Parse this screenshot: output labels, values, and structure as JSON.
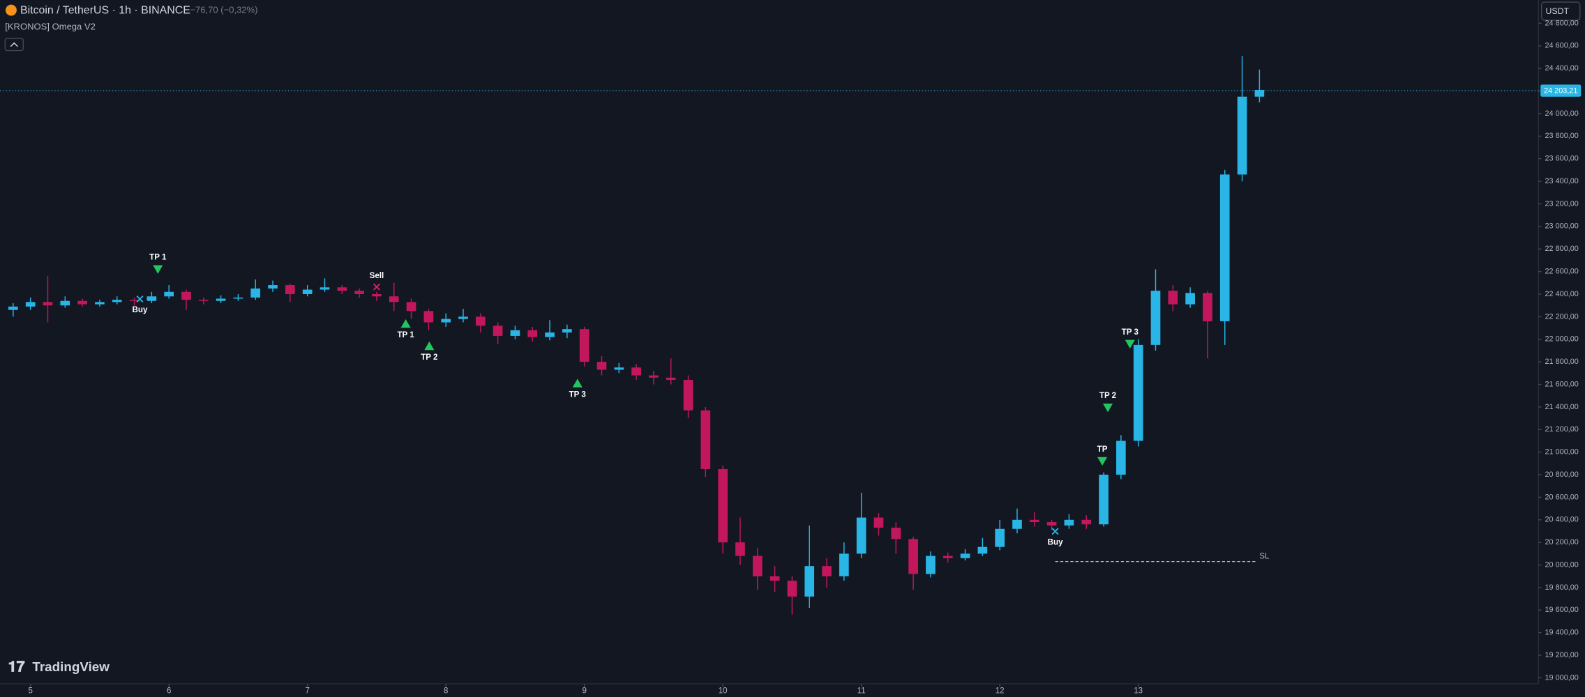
{
  "header": {
    "symbol": "Bitcoin / TetherUS · 1h · BINANCE",
    "change": "−76,70 (−0,32%)",
    "indicator": "[KRONOS] Omega V2",
    "currency": "USDT",
    "brand": "TradingView"
  },
  "chart_data": {
    "type": "candlestick",
    "x": [
      4.875,
      5,
      5.125,
      5.25,
      5.375,
      5.5,
      5.625,
      5.75,
      5.875,
      6,
      6.125,
      6.25,
      6.375,
      6.5,
      6.625,
      6.75,
      6.875,
      7,
      7.125,
      7.25,
      7.375,
      7.5,
      7.625,
      7.75,
      7.875,
      8,
      8.125,
      8.25,
      8.375,
      8.5,
      8.625,
      8.75,
      8.875,
      9,
      9.125,
      9.25,
      9.375,
      9.5,
      9.625,
      9.75,
      9.875,
      10,
      10.125,
      10.25,
      10.375,
      10.5,
      10.625,
      10.75,
      10.875,
      11,
      11.125,
      11.25,
      11.375,
      11.5,
      11.625,
      11.75,
      11.875,
      12,
      12.125,
      12.25,
      12.375,
      12.5,
      12.625,
      12.75,
      12.875,
      13,
      13.125,
      13.25,
      13.375,
      13.5,
      13.625,
      13.75,
      13.875
    ],
    "open": [
      22260,
      22290,
      22330,
      22300,
      22340,
      22310,
      22330,
      22350,
      22340,
      22380,
      22420,
      22350,
      22340,
      22360,
      22370,
      22450,
      22480,
      22400,
      22440,
      22460,
      22430,
      22400,
      22380,
      22330,
      22250,
      22150,
      22180,
      22200,
      22120,
      22030,
      22080,
      22020,
      22060,
      22090,
      21800,
      21730,
      21750,
      21680,
      21660,
      21640,
      21370,
      20850,
      20200,
      20080,
      19900,
      19860,
      19720,
      19990,
      19900,
      20100,
      20420,
      20330,
      20230,
      19920,
      20080,
      20060,
      20100,
      20160,
      20320,
      20400,
      20380,
      20350,
      20400,
      20360,
      20800,
      21100,
      21950,
      22430,
      22310,
      22410,
      22160,
      23460,
      24150
    ],
    "high": [
      22320,
      22370,
      22560,
      22380,
      22360,
      22350,
      22380,
      22370,
      22420,
      22480,
      22440,
      22370,
      22390,
      22400,
      22530,
      22520,
      22490,
      22480,
      22540,
      22480,
      22450,
      22420,
      22500,
      22360,
      22270,
      22230,
      22270,
      22230,
      22150,
      22120,
      22110,
      22170,
      22130,
      22110,
      21850,
      21790,
      21780,
      21720,
      21830,
      21680,
      21400,
      20880,
      20420,
      20150,
      19990,
      19900,
      20350,
      20060,
      20200,
      20640,
      20460,
      20380,
      20250,
      20120,
      20110,
      20140,
      20240,
      20400,
      20500,
      20470,
      20400,
      20450,
      20440,
      20820,
      21150,
      22000,
      22620,
      22480,
      22460,
      22430,
      23500,
      24510,
      24390
    ],
    "low": [
      22200,
      22260,
      22150,
      22280,
      22290,
      22290,
      22310,
      22300,
      22320,
      22360,
      22260,
      22310,
      22320,
      22340,
      22350,
      22420,
      22330,
      22380,
      22420,
      22400,
      22370,
      22340,
      22250,
      22180,
      22080,
      22110,
      22150,
      22060,
      21960,
      22000,
      21980,
      21990,
      22010,
      21760,
      21680,
      21700,
      21640,
      21600,
      21600,
      21300,
      20780,
      20100,
      20000,
      19780,
      19760,
      19560,
      19620,
      19800,
      19860,
      20060,
      20260,
      20100,
      19780,
      19890,
      20020,
      20040,
      20080,
      20130,
      20280,
      20340,
      20310,
      20320,
      20320,
      20340,
      20760,
      21050,
      21900,
      22250,
      22280,
      21830,
      21950,
      23400,
      24100
    ],
    "close": [
      22290,
      22330,
      22300,
      22340,
      22310,
      22330,
      22350,
      22340,
      22380,
      22420,
      22350,
      22340,
      22360,
      22370,
      22450,
      22480,
      22400,
      22440,
      22460,
      22430,
      22400,
      22380,
      22330,
      22250,
      22150,
      22180,
      22200,
      22120,
      22030,
      22080,
      22020,
      22060,
      22090,
      21800,
      21730,
      21750,
      21680,
      21660,
      21640,
      21370,
      20850,
      20200,
      20080,
      19900,
      19860,
      19720,
      19990,
      19900,
      20100,
      20420,
      20330,
      20230,
      19920,
      20080,
      20060,
      20100,
      20160,
      20320,
      20400,
      20380,
      20350,
      20400,
      20360,
      20800,
      21100,
      21950,
      22430,
      22310,
      22410,
      22160,
      23460,
      24150,
      24210
    ],
    "up_color": "#29b6e6",
    "down_color": "#c2185b",
    "xlim": [
      4.78,
      15.89
    ],
    "ylim": [
      18920,
      25006
    ],
    "xticks": [
      5,
      6,
      7,
      8,
      9,
      10,
      11,
      12,
      13
    ],
    "yticks": [
      {
        "value": 19000,
        "label": "19 000,00"
      },
      {
        "value": 19200,
        "label": "19 200,00"
      },
      {
        "value": 19400,
        "label": "19 400,00"
      },
      {
        "value": 19600,
        "label": "19 600,00"
      },
      {
        "value": 19800,
        "label": "19 800,00"
      },
      {
        "value": 20000,
        "label": "20 000,00"
      },
      {
        "value": 20200,
        "label": "20 200,00"
      },
      {
        "value": 20400,
        "label": "20 400,00"
      },
      {
        "value": 20600,
        "label": "20 600,00"
      },
      {
        "value": 20800,
        "label": "20 800,00"
      },
      {
        "value": 21000,
        "label": "21 000,00"
      },
      {
        "value": 21200,
        "label": "21 200,00"
      },
      {
        "value": 21400,
        "label": "21 400,00"
      },
      {
        "value": 21600,
        "label": "21 600,00"
      },
      {
        "value": 21800,
        "label": "21 800,00"
      },
      {
        "value": 22000,
        "label": "22 000,00"
      },
      {
        "value": 22200,
        "label": "22 200,00"
      },
      {
        "value": 22400,
        "label": "22 400,00"
      },
      {
        "value": 22600,
        "label": "22 600,00"
      },
      {
        "value": 22800,
        "label": "22 800,00"
      },
      {
        "value": 23000,
        "label": "23 000,00"
      },
      {
        "value": 23200,
        "label": "23 200,00"
      },
      {
        "value": 23400,
        "label": "23 400,00"
      },
      {
        "value": 23600,
        "label": "23 600,00"
      },
      {
        "value": 23800,
        "label": "23 800,00"
      },
      {
        "value": 24000,
        "label": "24 000,00"
      },
      {
        "value": 24200,
        "label": "24 200,00"
      },
      {
        "value": 24400,
        "label": "24 400,00"
      },
      {
        "value": 24600,
        "label": "24 600,00"
      },
      {
        "value": 24800,
        "label": "24 800,00"
      }
    ],
    "last_price": {
      "value": 24203.21,
      "label": "24 203,21",
      "color": "#29b6e6"
    },
    "signals": [
      {
        "label": "Buy",
        "x": 5.79,
        "price": 22357,
        "shape": "cross",
        "color": "#29b6e6",
        "label_side": "below"
      },
      {
        "label": "TP 1",
        "x": 5.92,
        "price": 22625,
        "shape": "triangle-down",
        "color": "#22c55e",
        "label_side": "above"
      },
      {
        "label": "Sell",
        "x": 7.5,
        "price": 22464,
        "shape": "cross",
        "color": "#e91e63",
        "label_side": "above"
      },
      {
        "label": "TP 1",
        "x": 7.71,
        "price": 22133,
        "shape": "triangle-up",
        "color": "#22c55e",
        "label_side": "below"
      },
      {
        "label": "TP 2",
        "x": 7.88,
        "price": 21936,
        "shape": "triangle-up",
        "color": "#22c55e",
        "label_side": "below"
      },
      {
        "label": "TP 3",
        "x": 8.95,
        "price": 21605,
        "shape": "triangle-up",
        "color": "#22c55e",
        "label_side": "below"
      },
      {
        "label": "Buy",
        "x": 12.4,
        "price": 20298,
        "shape": "cross",
        "color": "#29b6e6",
        "label_side": "below"
      },
      {
        "label": "TP",
        "x": 12.74,
        "price": 20925,
        "shape": "triangle-down",
        "color": "#22c55e",
        "label_side": "above"
      },
      {
        "label": "TP 2",
        "x": 12.78,
        "price": 21399,
        "shape": "triangle-down",
        "color": "#22c55e",
        "label_side": "above"
      },
      {
        "label": "TP 3",
        "x": 12.94,
        "price": 21963,
        "shape": "triangle-down",
        "color": "#22c55e",
        "label_side": "above"
      }
    ],
    "stop_loss": {
      "label": "SL",
      "x": [
        12.4,
        13.86
      ],
      "price": 20030
    }
  }
}
